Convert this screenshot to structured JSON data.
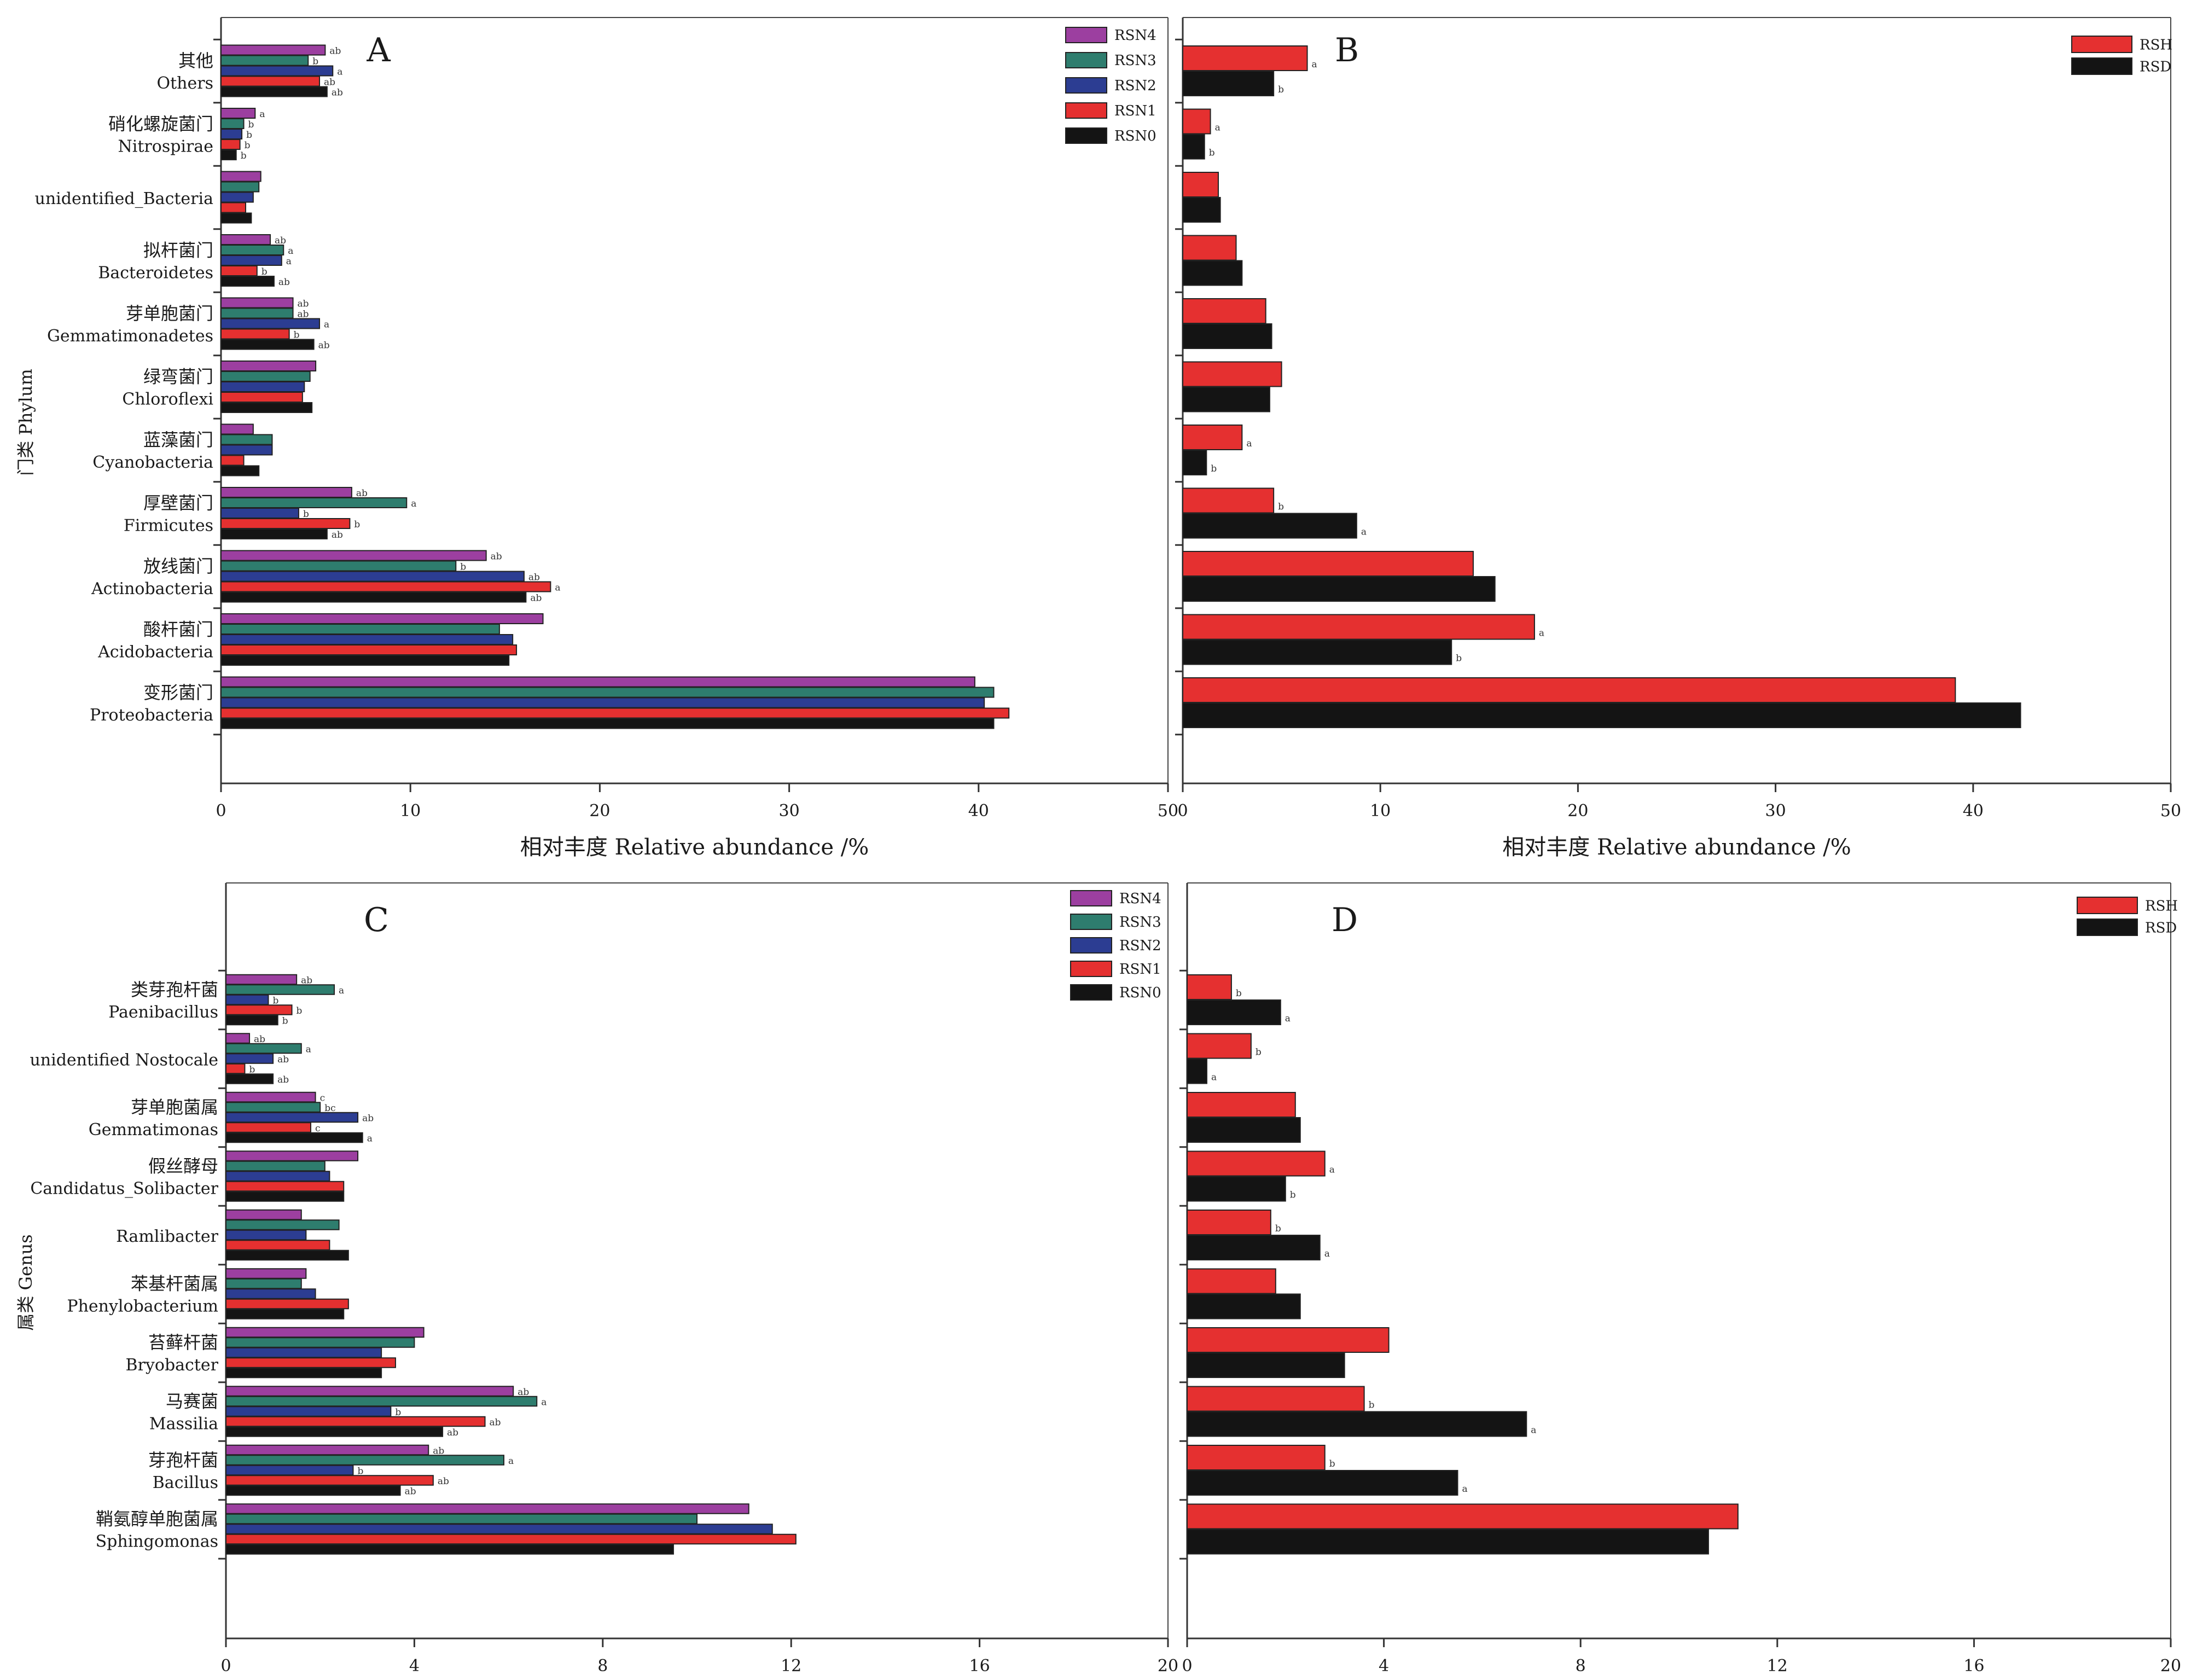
{
  "colors": {
    "RSN4": "#9c3fa0",
    "RSN3": "#2e7d6e",
    "RSN2": "#2c3d92",
    "RSN1": "#e53030",
    "RSN0": "#141414",
    "RSH": "#e53030",
    "RSD": "#141414"
  },
  "chart_data": [
    {
      "panel": "A",
      "type": "bar",
      "orientation": "horizontal",
      "ylabel": "门类 Phylum",
      "xlabel": "相对丰度 Relative abundance /%",
      "xlim": [
        0,
        50
      ],
      "xticks": [
        "0",
        "10",
        "20",
        "30",
        "40",
        "50"
      ],
      "legend_position": "top-right",
      "categories": [
        {
          "cn": "其他",
          "en": "Others"
        },
        {
          "cn": "硝化螺旋菌门",
          "en": "Nitrospirae"
        },
        {
          "cn": "",
          "en": "unidentified_Bacteria"
        },
        {
          "cn": "拟杆菌门",
          "en": "Bacteroidetes"
        },
        {
          "cn": "芽单胞菌门",
          "en": "Gemmatimonadetes"
        },
        {
          "cn": "绿弯菌门",
          "en": "Chloroflexi"
        },
        {
          "cn": "蓝藻菌门",
          "en": "Cyanobacteria"
        },
        {
          "cn": "厚壁菌门",
          "en": "Firmicutes"
        },
        {
          "cn": "放线菌门",
          "en": "Actinobacteria"
        },
        {
          "cn": "酸杆菌门",
          "en": "Acidobacteria"
        },
        {
          "cn": "变形菌门",
          "en": "Proteobacteria"
        }
      ],
      "series": [
        {
          "name": "RSN4",
          "values": [
            5.5,
            1.8,
            2.1,
            2.6,
            3.8,
            5.0,
            1.7,
            6.9,
            14.0,
            17.0,
            39.8
          ],
          "labels": [
            "ab",
            "a",
            "",
            "ab",
            "ab",
            "",
            "",
            "ab",
            "ab",
            "",
            ""
          ]
        },
        {
          "name": "RSN3",
          "values": [
            4.6,
            1.2,
            2.0,
            3.3,
            3.8,
            4.7,
            2.7,
            9.8,
            12.4,
            14.7,
            40.8
          ],
          "labels": [
            "b",
            "b",
            "",
            "a",
            "ab",
            "",
            "",
            "a",
            "b",
            "",
            ""
          ]
        },
        {
          "name": "RSN2",
          "values": [
            5.9,
            1.1,
            1.7,
            3.2,
            5.2,
            4.4,
            2.7,
            4.1,
            16.0,
            15.4,
            40.3
          ],
          "labels": [
            "a",
            "b",
            "",
            "a",
            "a",
            "",
            "",
            "b",
            "ab",
            "",
            ""
          ]
        },
        {
          "name": "RSN1",
          "values": [
            5.2,
            1.0,
            1.3,
            1.9,
            3.6,
            4.3,
            1.2,
            6.8,
            17.4,
            15.6,
            41.6
          ],
          "labels": [
            "ab",
            "b",
            "",
            "b",
            "b",
            "",
            "",
            "b",
            "a",
            "",
            ""
          ]
        },
        {
          "name": "RSN0",
          "values": [
            5.6,
            0.8,
            1.6,
            2.8,
            4.9,
            4.8,
            2.0,
            5.6,
            16.1,
            15.2,
            40.8
          ],
          "labels": [
            "ab",
            "b",
            "",
            "ab",
            "ab",
            "",
            "",
            "ab",
            "ab",
            "",
            ""
          ]
        }
      ]
    },
    {
      "panel": "B",
      "type": "bar",
      "orientation": "horizontal",
      "xlabel": "相对丰度 Relative abundance /%",
      "xlim": [
        0,
        50
      ],
      "xticks": [
        "0",
        "10",
        "20",
        "30",
        "40",
        "50"
      ],
      "legend_position": "top-right",
      "categories": [
        "Others",
        "Nitrospirae",
        "unidentified_Bacteria",
        "Bacteroidetes",
        "Gemmatimonadetes",
        "Chloroflexi",
        "Cyanobacteria",
        "Firmicutes",
        "Actinobacteria",
        "Acidobacteria",
        "Proteobacteria"
      ],
      "series": [
        {
          "name": "RSH",
          "values": [
            6.3,
            1.4,
            1.8,
            2.7,
            4.2,
            5.0,
            3.0,
            4.6,
            14.7,
            17.8,
            39.1
          ],
          "labels": [
            "a",
            "a",
            "",
            "",
            "",
            "",
            "a",
            "b",
            "",
            "a",
            ""
          ]
        },
        {
          "name": "RSD",
          "values": [
            4.6,
            1.1,
            1.9,
            3.0,
            4.5,
            4.4,
            1.2,
            8.8,
            15.8,
            13.6,
            42.4
          ],
          "labels": [
            "b",
            "b",
            "",
            "",
            "",
            "",
            "b",
            "a",
            "",
            "b",
            ""
          ]
        }
      ]
    },
    {
      "panel": "C",
      "type": "bar",
      "orientation": "horizontal",
      "ylabel": "属类 Genus",
      "xlabel": "相对丰度 Relative abundance /%",
      "xlim": [
        0,
        20
      ],
      "xticks": [
        "0",
        "4",
        "8",
        "12",
        "16",
        "20"
      ],
      "legend_position": "top-right",
      "categories": [
        {
          "cn": "类芽孢杆菌",
          "en": "Paenibacillus"
        },
        {
          "cn": "",
          "en": "unidentified Nostocale"
        },
        {
          "cn": "芽单胞菌属",
          "en": "Gemmatimonas"
        },
        {
          "cn": "假丝酵母",
          "en": "Candidatus_Solibacter"
        },
        {
          "cn": "",
          "en": "Ramlibacter"
        },
        {
          "cn": "苯基杆菌属",
          "en": "Phenylobacterium"
        },
        {
          "cn": "苔藓杆菌",
          "en": "Bryobacter"
        },
        {
          "cn": "马赛菌",
          "en": "Massilia"
        },
        {
          "cn": "芽孢杆菌",
          "en": "Bacillus"
        },
        {
          "cn": "鞘氨醇单胞菌属",
          "en": "Sphingomonas"
        }
      ],
      "series": [
        {
          "name": "RSN4",
          "values": [
            1.5,
            0.5,
            1.9,
            2.8,
            1.6,
            1.7,
            4.2,
            6.1,
            4.3,
            11.1
          ],
          "labels": [
            "ab",
            "ab",
            "c",
            "",
            "",
            "",
            "",
            "ab",
            "ab",
            ""
          ]
        },
        {
          "name": "RSN3",
          "values": [
            2.3,
            1.6,
            2.0,
            2.1,
            2.4,
            1.6,
            4.0,
            6.6,
            5.9,
            10.0
          ],
          "labels": [
            "a",
            "a",
            "bc",
            "",
            "",
            "",
            "",
            "a",
            "a",
            ""
          ]
        },
        {
          "name": "RSN2",
          "values": [
            0.9,
            1.0,
            2.8,
            2.2,
            1.7,
            1.9,
            3.3,
            3.5,
            2.7,
            11.6
          ],
          "labels": [
            "b",
            "ab",
            "ab",
            "",
            "",
            "",
            "",
            "b",
            "b",
            ""
          ]
        },
        {
          "name": "RSN1",
          "values": [
            1.4,
            0.4,
            1.8,
            2.5,
            2.2,
            2.6,
            3.6,
            5.5,
            4.4,
            12.1
          ],
          "labels": [
            "b",
            "b",
            "c",
            "",
            "",
            "",
            "",
            "ab",
            "ab",
            ""
          ]
        },
        {
          "name": "RSN0",
          "values": [
            1.1,
            1.0,
            2.9,
            2.5,
            2.6,
            2.5,
            3.3,
            4.6,
            3.7,
            9.5
          ],
          "labels": [
            "b",
            "ab",
            "a",
            "",
            "",
            "",
            "",
            "ab",
            "ab",
            ""
          ]
        }
      ]
    },
    {
      "panel": "D",
      "type": "bar",
      "orientation": "horizontal",
      "xlabel": "相对丰度 Relative abundance /%",
      "xlim": [
        0,
        20
      ],
      "xticks": [
        "0",
        "4",
        "8",
        "12",
        "16",
        "20"
      ],
      "legend_position": "top-right",
      "categories": [
        "Paenibacillus",
        "unidentified Nostocale",
        "Gemmatimonas",
        "Candidatus_Solibacter",
        "Ramlibacter",
        "Phenylobacterium",
        "Bryobacter",
        "Massilia",
        "Bacillus",
        "Sphingomonas"
      ],
      "series": [
        {
          "name": "RSH",
          "values": [
            0.9,
            1.3,
            2.2,
            2.8,
            1.7,
            1.8,
            4.1,
            3.6,
            2.8,
            11.2
          ],
          "labels": [
            "b",
            "b",
            "",
            "a",
            "b",
            "",
            "",
            "b",
            "b",
            ""
          ]
        },
        {
          "name": "RSD",
          "values": [
            1.9,
            0.4,
            2.3,
            2.0,
            2.7,
            2.3,
            3.2,
            6.9,
            5.5,
            10.6
          ],
          "labels": [
            "a",
            "a",
            "",
            "b",
            "a",
            "",
            "",
            "a",
            "a",
            ""
          ]
        }
      ]
    }
  ]
}
